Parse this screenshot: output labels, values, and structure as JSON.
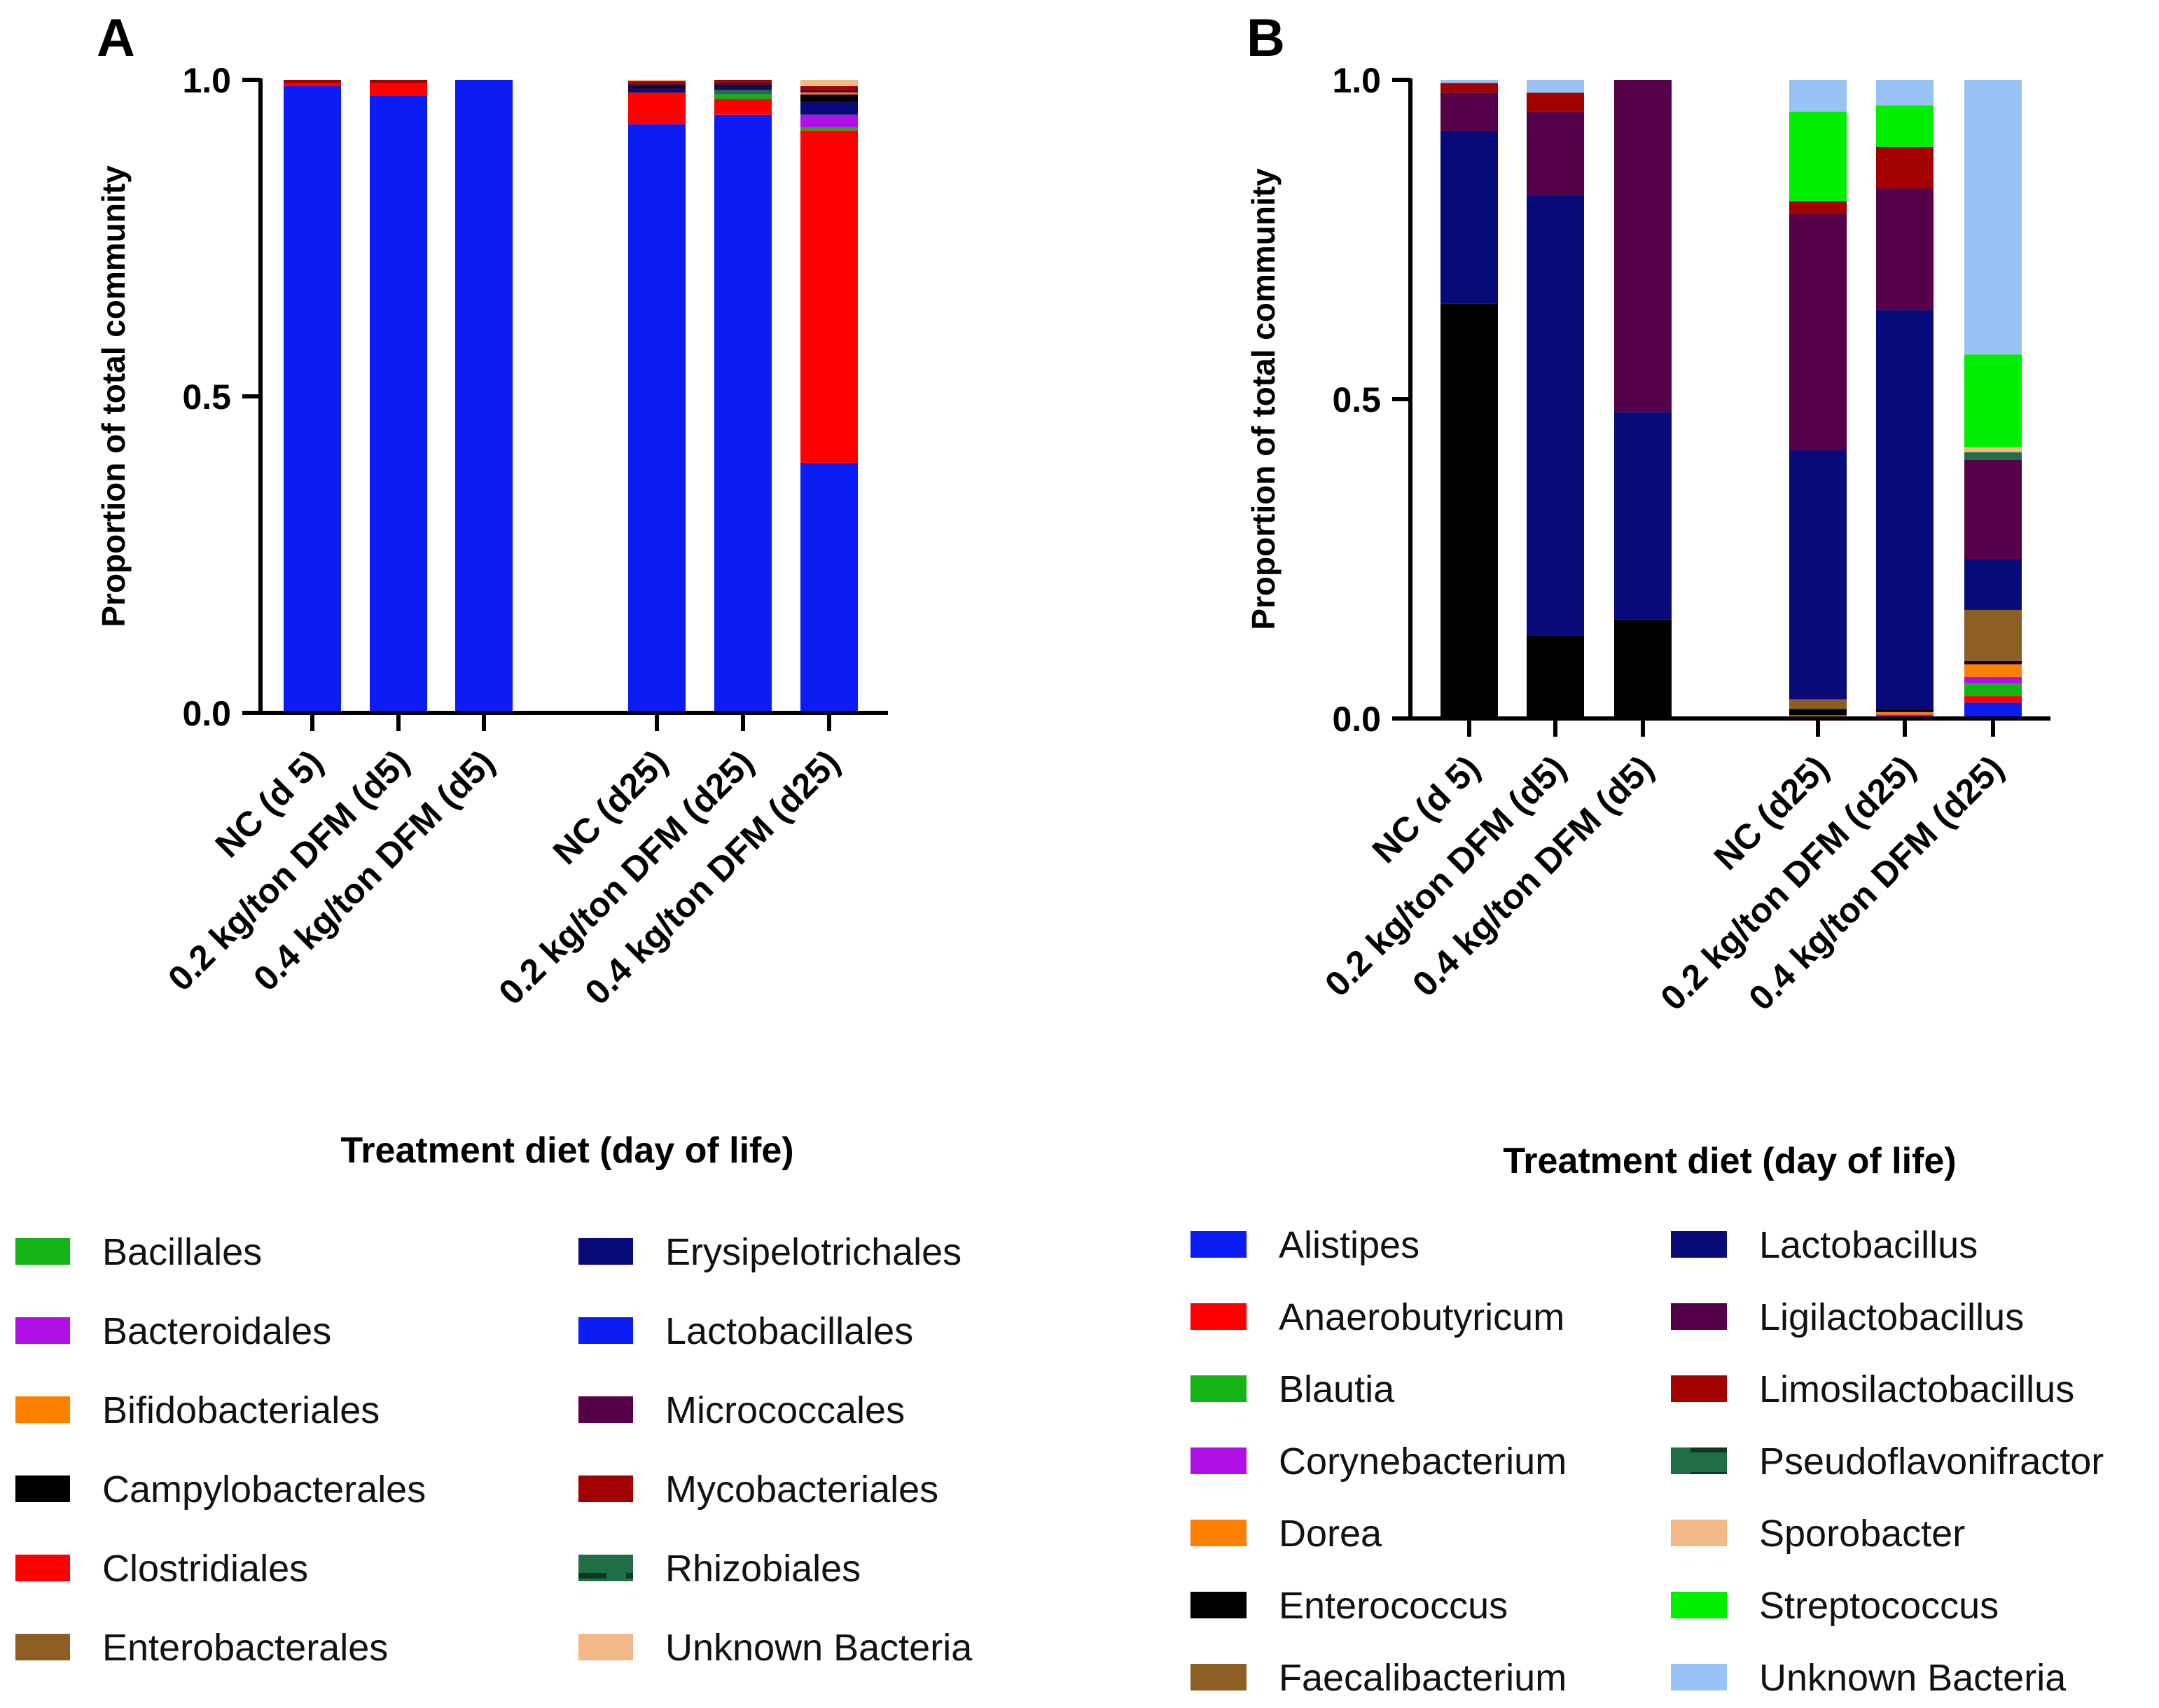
{
  "chart_data": [
    {
      "type": "bar",
      "stacked": true,
      "panel": "A",
      "title": "",
      "ylabel": "Proportion of total community",
      "xlabel": "Treatment diet (day of life)",
      "ylim": [
        0,
        1.0
      ],
      "yticks": [
        "0.0",
        "0.5",
        "1.0"
      ],
      "categories": [
        "NC (d 5)",
        "0.2 kg/ton DFM (d5)",
        "0.4 kg/ton DFM (d5)",
        "NC (d25)",
        "0.2 kg/ton DFM (d25)",
        "0.4 kg/ton DFM (d25)"
      ],
      "series": [
        {
          "name": "Lactobacillales",
          "color": "#0b1cf5",
          "values": [
            0.99,
            0.975,
            1.0,
            0.93,
            0.945,
            0.395
          ]
        },
        {
          "name": "Clostridiales",
          "color": "#ff0000",
          "values": [
            0.005,
            0.02,
            0.0,
            0.05,
            0.025,
            0.525
          ]
        },
        {
          "name": "Bacillales",
          "color": "#12b312",
          "values": [
            0.0,
            0.0,
            0.0,
            0.0,
            0.007,
            0.005
          ]
        },
        {
          "name": "Bacteroidales",
          "color": "#b010e6",
          "values": [
            0.0,
            0.0,
            0.0,
            0.0,
            0.0,
            0.02
          ]
        },
        {
          "name": "Rhizobiales",
          "color": "#1f6e45",
          "values": [
            0.0,
            0.0,
            0.0,
            0.0,
            0.007,
            0.0
          ]
        },
        {
          "name": "Erysipelotrichales",
          "color": "#080a7a",
          "values": [
            0.0,
            0.0,
            0.0,
            0.007,
            0.004,
            0.02
          ]
        },
        {
          "name": "Campylobacterales",
          "color": "#000000",
          "values": [
            0.0,
            0.0,
            0.0,
            0.004,
            0.004,
            0.012
          ]
        },
        {
          "name": "Bifidobacteriales",
          "color": "#ff8000",
          "values": [
            0.0,
            0.0,
            0.0,
            0.0,
            0.0,
            0.003
          ]
        },
        {
          "name": "Micrococcales",
          "color": "#550049",
          "values": [
            0.0,
            0.0,
            0.0,
            0.003,
            0.004,
            0.004
          ]
        },
        {
          "name": "Mycobacteriales",
          "color": "#a30000",
          "values": [
            0.005,
            0.005,
            0.0,
            0.004,
            0.004,
            0.006
          ]
        },
        {
          "name": "Enterobacterales",
          "color": "#8c5e22",
          "values": [
            0.0,
            0.0,
            0.0,
            0.0,
            0.0,
            0.0
          ]
        },
        {
          "name": "Unknown Bacteria",
          "color": "#f2b888",
          "values": [
            0.0,
            0.0,
            0.0,
            0.002,
            0.0,
            0.01
          ]
        }
      ],
      "legend": [
        {
          "name": "Bacillales",
          "color": "#12b312"
        },
        {
          "name": "Bacteroidales",
          "color": "#b010e6"
        },
        {
          "name": "Bifidobacteriales",
          "color": "#ff8000"
        },
        {
          "name": "Campylobacterales",
          "color": "#000000"
        },
        {
          "name": "Clostridiales",
          "color": "#ff0000"
        },
        {
          "name": "Enterobacterales",
          "color": "#8c5e22"
        },
        {
          "name": "Erysipelotrichales",
          "color": "#080a7a"
        },
        {
          "name": "Lactobacillales",
          "color": "#0b1cf5"
        },
        {
          "name": "Micrococcales",
          "color": "#550049"
        },
        {
          "name": "Mycobacteriales",
          "color": "#a30000"
        },
        {
          "name": "Rhizobiales",
          "color": "#1f6e45",
          "pattern": "stripe"
        },
        {
          "name": "Unknown Bacteria",
          "color": "#f2b888"
        }
      ]
    },
    {
      "type": "bar",
      "stacked": true,
      "panel": "B",
      "title": "",
      "ylabel": "Proportion of total community",
      "xlabel": "Treatment diet (day of life)",
      "ylim": [
        0,
        1.0
      ],
      "yticks": [
        "0.0",
        "0.5",
        "1.0"
      ],
      "categories": [
        "NC (d 5)",
        "0.2 kg/ton DFM (d5)",
        "0.4 kg/ton DFM (d5)",
        "NC (d25)",
        "0.2 kg/ton DFM (d25)",
        "0.4 kg/ton DFM (d25)"
      ],
      "series": [
        {
          "name": "Alistipes",
          "color": "#0b1cf5",
          "values": [
            0.0,
            0.0,
            0.0,
            0.0,
            0.0,
            0.025
          ]
        },
        {
          "name": "Anaerobutyricum",
          "color": "#ff0000",
          "values": [
            0.0,
            0.0,
            0.0,
            0.0,
            0.0,
            0.01
          ]
        },
        {
          "name": "Blautia",
          "color": "#12b312",
          "values": [
            0.0,
            0.0,
            0.0,
            0.0,
            0.0,
            0.02
          ]
        },
        {
          "name": "Corynebacterium",
          "color": "#b010e6",
          "values": [
            0.0,
            0.0,
            0.0,
            0.0,
            0.006,
            0.01
          ]
        },
        {
          "name": "Dorea",
          "color": "#ff8000",
          "values": [
            0.0,
            0.0,
            0.0,
            0.005,
            0.004,
            0.02
          ]
        },
        {
          "name": "Enterococcus",
          "color": "#000000",
          "values": [
            0.65,
            0.13,
            0.155,
            0.01,
            0.005,
            0.005
          ]
        },
        {
          "name": "Faecalibacterium",
          "color": "#8c5e22",
          "values": [
            0.0,
            0.0,
            0.0,
            0.015,
            0.0,
            0.08
          ]
        },
        {
          "name": "Lactobacillus",
          "color": "#080a7a",
          "values": [
            0.27,
            0.69,
            0.325,
            0.39,
            0.625,
            0.08
          ]
        },
        {
          "name": "Ligilactobacillus",
          "color": "#550049",
          "values": [
            0.06,
            0.13,
            0.52,
            0.37,
            0.19,
            0.155
          ]
        },
        {
          "name": "Pseudoflavonifractor",
          "color": "#1f6e45",
          "values": [
            0.0,
            0.0,
            0.0,
            0.0,
            0.0,
            0.012
          ]
        },
        {
          "name": "Sporobacter",
          "color": "#f2b888",
          "values": [
            0.0,
            0.0,
            0.0,
            0.0,
            0.0,
            0.008
          ]
        },
        {
          "name": "Limosilactobacillus",
          "color": "#a30000",
          "values": [
            0.015,
            0.03,
            0.0,
            0.02,
            0.065,
            0.0
          ]
        },
        {
          "name": "Streptococcus",
          "color": "#00ee00",
          "values": [
            0.0,
            0.0,
            0.0,
            0.14,
            0.065,
            0.145
          ]
        },
        {
          "name": "Unknown Bacteria",
          "color": "#99c3f5",
          "values": [
            0.005,
            0.02,
            0.0,
            0.05,
            0.04,
            0.43
          ]
        }
      ],
      "legend": [
        {
          "name": "Alistipes",
          "color": "#0b1cf5"
        },
        {
          "name": "Anaerobutyricum",
          "color": "#ff0000"
        },
        {
          "name": "Blautia",
          "color": "#12b312"
        },
        {
          "name": "Corynebacterium",
          "color": "#b010e6"
        },
        {
          "name": "Dorea",
          "color": "#ff8000"
        },
        {
          "name": "Enterococcus",
          "color": "#000000"
        },
        {
          "name": "Faecalibacterium",
          "color": "#8c5e22"
        },
        {
          "name": "Lactobacillus",
          "color": "#080a7a"
        },
        {
          "name": "Ligilactobacillus",
          "color": "#550049"
        },
        {
          "name": "Limosilactobacillus",
          "color": "#a30000"
        },
        {
          "name": "Pseudoflavonifractor",
          "color": "#1f6e45",
          "pattern": "stripe"
        },
        {
          "name": "Sporobacter",
          "color": "#f2b888"
        },
        {
          "name": "Streptococcus",
          "color": "#00ee00"
        },
        {
          "name": "Unknown Bacteria",
          "color": "#99c3f5"
        }
      ]
    }
  ]
}
